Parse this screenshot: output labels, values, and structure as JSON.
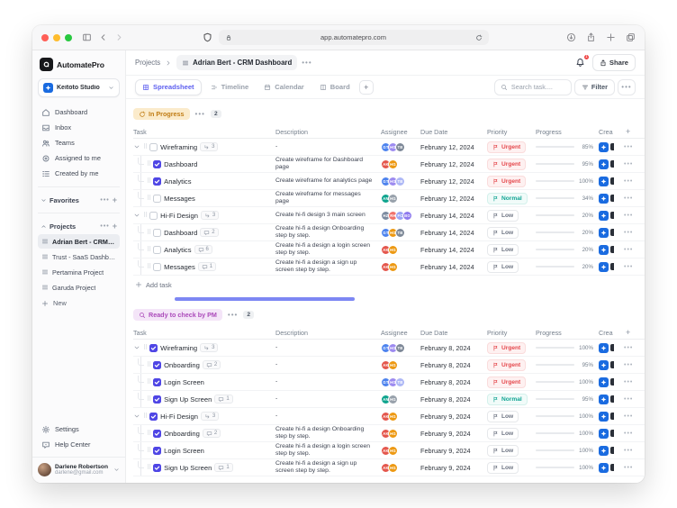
{
  "browser": {
    "url": "app.automatepro.com",
    "traffic_lights": [
      "#FF5F57",
      "#FEBC2E",
      "#28C840"
    ]
  },
  "sidebar": {
    "logo_text": "AutomatePro",
    "workspace": {
      "name": "Keitoto Studio"
    },
    "nav": [
      {
        "label": "Dashboard",
        "icon": "home-icon"
      },
      {
        "label": "Inbox",
        "icon": "inbox-icon"
      },
      {
        "label": "Teams",
        "icon": "users-icon"
      },
      {
        "label": "Assigned to me",
        "icon": "target-icon"
      },
      {
        "label": "Created by me",
        "icon": "doc-list-icon"
      }
    ],
    "sections": [
      {
        "label": "Favorites",
        "collapsed": true,
        "items": [],
        "active_item": -1
      },
      {
        "label": "Projects",
        "collapsed": false,
        "items": [
          "Adrian Bert - CRM Da...",
          "Trust - SaaS Dashbo...",
          "Pertamina Project",
          "Garuda Project"
        ],
        "active_item": 0
      }
    ],
    "new_label": "New",
    "footer_nav": [
      {
        "label": "Settings",
        "icon": "gear-icon"
      },
      {
        "label": "Help Center",
        "icon": "help-icon"
      }
    ],
    "user": {
      "name": "Darlene Robertson",
      "email": "darlene@gmail.com"
    }
  },
  "header": {
    "breadcrumb_root": "Projects",
    "title": "Adrian Bert - CRM Dashboard",
    "notification_count": "1",
    "share_label": "Share"
  },
  "tabs": [
    {
      "label": "Spreadsheet",
      "icon": "grid-icon",
      "active": true
    },
    {
      "label": "Timeline",
      "icon": "timeline-icon",
      "active": false
    },
    {
      "label": "Calendar",
      "icon": "calendar-icon",
      "active": false
    },
    {
      "label": "Board",
      "icon": "board-icon",
      "active": false
    }
  ],
  "toolbar": {
    "search_placeholder": "Search task....",
    "filter_label": "Filter"
  },
  "table": {
    "columns": [
      "Task",
      "Description",
      "Assignee",
      "Due Date",
      "Priority",
      "Progress",
      "Crea",
      "+"
    ],
    "add_task_label": "Add task"
  },
  "groups": [
    {
      "label": "In Progress",
      "icon": "refresh-icon",
      "style": "amber",
      "count": "2",
      "show_scrollbar": true,
      "rows": [
        {
          "name": "Wireframing",
          "level": 0,
          "checked": false,
          "badge": {
            "type": "subtask",
            "count": "3"
          },
          "desc": "-",
          "assignees": [
            {
              "i": "GT",
              "c": "#4D83EE"
            },
            {
              "i": "HG",
              "c": "#9D8BF0"
            },
            {
              "i": "TB",
              "c": "#7E8998"
            }
          ],
          "due": "February 12, 2024",
          "priority": "Urgent",
          "progress": 85
        },
        {
          "name": "Dashboard",
          "level": 1,
          "checked": true,
          "badge": null,
          "desc": "Create wireframe for Dashboard page",
          "assignees": [
            {
              "i": "AK",
              "c": "#E4574D"
            },
            {
              "i": "HG",
              "c": "#ED9913"
            }
          ],
          "due": "February 12, 2024",
          "priority": "Urgent",
          "progress": 95
        },
        {
          "name": "Analytics",
          "level": 1,
          "checked": true,
          "badge": null,
          "desc": "Create wireframe for analytics page",
          "assignees": [
            {
              "i": "GT",
              "c": "#4D83EE"
            },
            {
              "i": "HG",
              "c": "#9D8BF0"
            },
            {
              "i": "TB",
              "c": "#AEB8F6"
            }
          ],
          "due": "February 12, 2024",
          "priority": "Urgent",
          "progress": 100
        },
        {
          "name": "Messages",
          "level": 1,
          "checked": false,
          "badge": null,
          "desc": "Create wireframe for messages page",
          "assignees": [
            {
              "i": "AN",
              "c": "#0FA48E"
            },
            {
              "i": "HG",
              "c": "#98A1AB"
            }
          ],
          "due": "February 12, 2024",
          "priority": "Normal",
          "progress": 34
        },
        {
          "name": "Hi-Fi Design",
          "level": 0,
          "checked": false,
          "badge": {
            "type": "subtask",
            "count": "3"
          },
          "desc": "Create hi-fi design  3 main screen",
          "assignees": [
            {
              "i": "HZ",
              "c": "#7C8BA0"
            },
            {
              "i": "RH",
              "c": "#F0726B"
            },
            {
              "i": "FC",
              "c": "#9AA4F5"
            },
            {
              "i": "BO",
              "c": "#8F7BEE"
            }
          ],
          "due": "February 14, 2024",
          "priority": "Low",
          "progress": 20
        },
        {
          "name": "Dashboard",
          "level": 1,
          "checked": false,
          "badge": {
            "type": "comment",
            "count": "2"
          },
          "desc": "Create hi-fi a design Onboarding step by step.",
          "assignees": [
            {
              "i": "GT",
              "c": "#4D83EE"
            },
            {
              "i": "HG",
              "c": "#ED9913"
            },
            {
              "i": "TB",
              "c": "#7E8998"
            }
          ],
          "due": "February 14, 2024",
          "priority": "Low",
          "progress": 20
        },
        {
          "name": "Analytics",
          "level": 1,
          "checked": false,
          "badge": {
            "type": "comment",
            "count": "6"
          },
          "desc": "Create hi-fi a design a login screen step by step.",
          "assignees": [
            {
              "i": "AK",
              "c": "#E4574D"
            },
            {
              "i": "HG",
              "c": "#ED9913"
            }
          ],
          "due": "February 14, 2024",
          "priority": "Low",
          "progress": 20
        },
        {
          "name": "Messages",
          "level": 1,
          "checked": false,
          "badge": {
            "type": "comment",
            "count": "1"
          },
          "desc": "Create hi-fi a design a sign up screen step by step.",
          "assignees": [
            {
              "i": "AK",
              "c": "#E4574D"
            },
            {
              "i": "HG",
              "c": "#ED9913"
            }
          ],
          "due": "February 14, 2024",
          "priority": "Low",
          "progress": 20
        }
      ]
    },
    {
      "label": "Ready to check by PM",
      "icon": "magnifier-icon",
      "style": "purple",
      "count": "2",
      "show_scrollbar": false,
      "rows": [
        {
          "name": "Wireframing",
          "level": 0,
          "checked": true,
          "badge": {
            "type": "subtask",
            "count": "3"
          },
          "desc": "-",
          "assignees": [
            {
              "i": "GT",
              "c": "#4D83EE"
            },
            {
              "i": "HG",
              "c": "#9D8BF0"
            },
            {
              "i": "TB",
              "c": "#7E8998"
            }
          ],
          "due": "February 8, 2024",
          "priority": "Urgent",
          "progress": 100
        },
        {
          "name": "Onboarding",
          "level": 1,
          "checked": true,
          "badge": {
            "type": "comment",
            "count": "2"
          },
          "desc": "-",
          "assignees": [
            {
              "i": "AK",
              "c": "#E4574D"
            },
            {
              "i": "HG",
              "c": "#ED9913"
            }
          ],
          "due": "February 8, 2024",
          "priority": "Urgent",
          "progress": 95
        },
        {
          "name": "Login Screen",
          "level": 1,
          "checked": true,
          "badge": null,
          "desc": "-",
          "assignees": [
            {
              "i": "GT",
              "c": "#4D83EE"
            },
            {
              "i": "HG",
              "c": "#9D8BF0"
            },
            {
              "i": "TB",
              "c": "#AEB8F6"
            }
          ],
          "due": "February 8, 2024",
          "priority": "Urgent",
          "progress": 100
        },
        {
          "name": "Sign Up Screen",
          "level": 1,
          "checked": true,
          "badge": {
            "type": "comment",
            "count": "1"
          },
          "desc": "-",
          "assignees": [
            {
              "i": "AN",
              "c": "#0FA48E"
            },
            {
              "i": "HG",
              "c": "#98A1AB"
            }
          ],
          "due": "February 8, 2024",
          "priority": "Normal",
          "progress": 95
        },
        {
          "name": "Hi-Fi Design",
          "level": 0,
          "checked": true,
          "badge": {
            "type": "subtask",
            "count": "3"
          },
          "desc": "-",
          "assignees": [
            {
              "i": "AK",
              "c": "#E4574D"
            },
            {
              "i": "HG",
              "c": "#ED9913"
            }
          ],
          "due": "February 9, 2024",
          "priority": "Low",
          "progress": 100
        },
        {
          "name": "Onboarding",
          "level": 1,
          "checked": true,
          "badge": {
            "type": "comment",
            "count": "2"
          },
          "desc": "Create hi-fi a design Onboarding step by step.",
          "assignees": [
            {
              "i": "AK",
              "c": "#E4574D"
            },
            {
              "i": "HG",
              "c": "#ED9913"
            }
          ],
          "due": "February 9, 2024",
          "priority": "Low",
          "progress": 100
        },
        {
          "name": "Login Screen",
          "level": 1,
          "checked": true,
          "badge": null,
          "desc": "Create hi-fi a design a login screen step by step.",
          "assignees": [
            {
              "i": "AK",
              "c": "#E4574D"
            },
            {
              "i": "HG",
              "c": "#ED9913"
            }
          ],
          "due": "February 9, 2024",
          "priority": "Low",
          "progress": 100
        },
        {
          "name": "Sign Up Screen",
          "level": 1,
          "checked": true,
          "badge": {
            "type": "comment",
            "count": "1"
          },
          "desc": "Create hi-fi a design a sign up screen step by step.",
          "assignees": [
            {
              "i": "AK",
              "c": "#E4574D"
            },
            {
              "i": "HG",
              "c": "#ED9913"
            }
          ],
          "due": "February 9, 2024",
          "priority": "Low",
          "progress": 100
        }
      ]
    }
  ],
  "colors": {
    "accent": "#4F46E5",
    "progress_fill": "#5D5FEF",
    "urgent": "#E5484D",
    "normal": "#12A594",
    "low": "#6B7280"
  }
}
